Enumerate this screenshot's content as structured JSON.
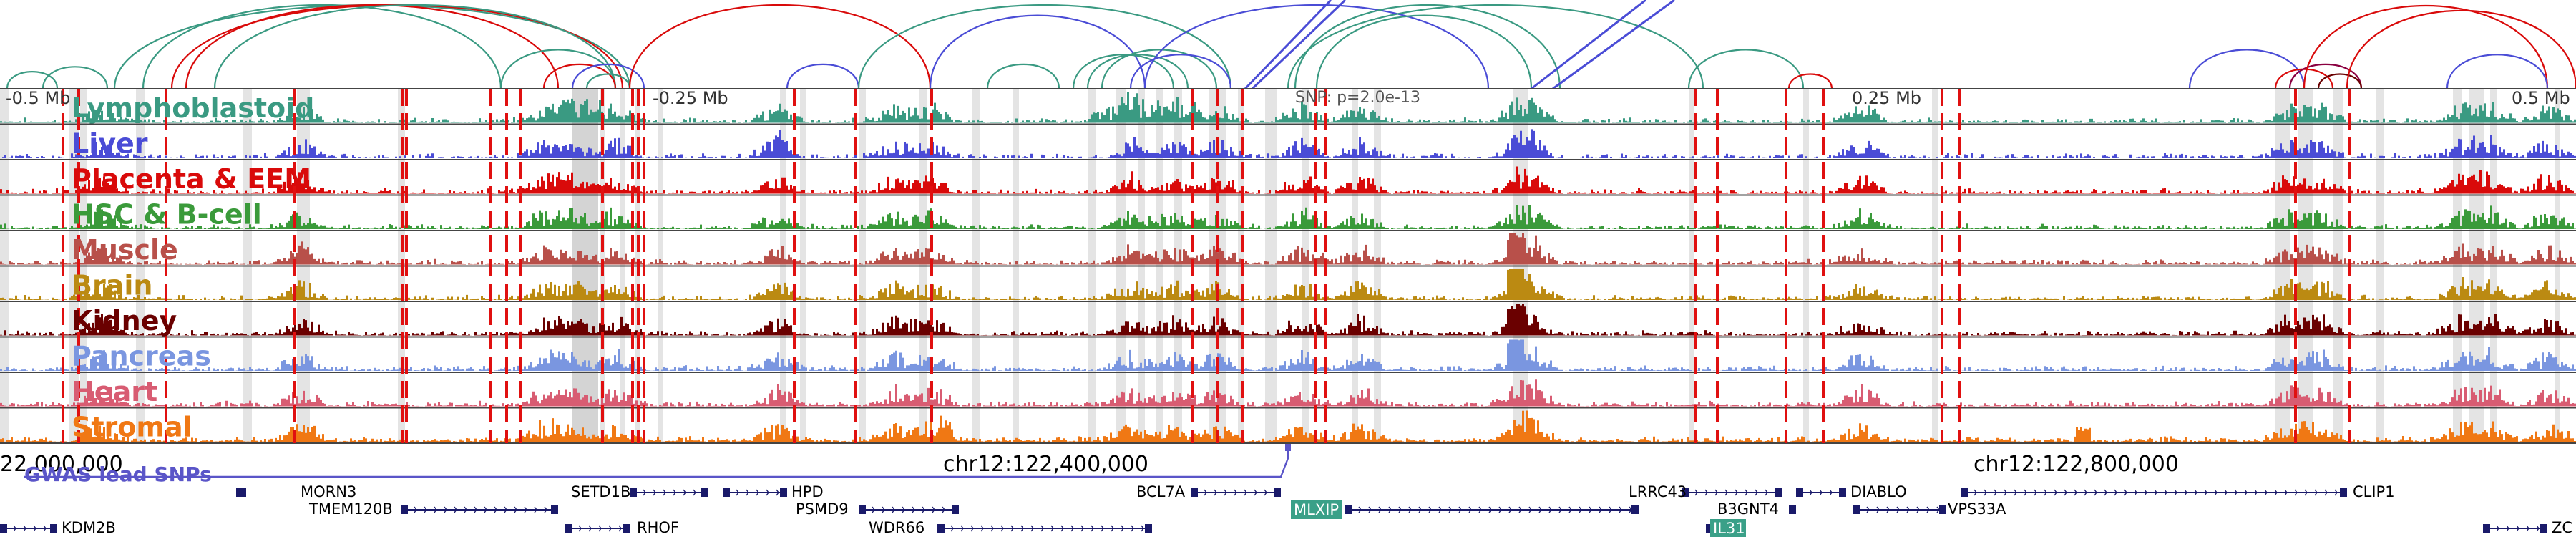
{
  "axis_ticks": [
    "-0.5 Mb",
    "-0.25 Mb",
    "0.25 Mb",
    "0.5 Mb"
  ],
  "snp_annotation": "SNP: p=2.0e-13",
  "coordinates": [
    "22,000,000",
    "chr12:122,400,000",
    "chr12:122,800,000"
  ],
  "gwas_label": "GWAS lead SNPs",
  "tracks": [
    {
      "label": "Lymphoblastoid",
      "color": "#3a9a82"
    },
    {
      "label": "Liver",
      "color": "#4a4cd6"
    },
    {
      "label": "Placenta & EEM",
      "color": "#d90a0a"
    },
    {
      "label": "HSC & B-cell",
      "color": "#3a9a3a"
    },
    {
      "label": "Muscle",
      "color": "#b8504a"
    },
    {
      "label": "Brain",
      "color": "#bb8a12"
    },
    {
      "label": "Kidney",
      "color": "#6a0000"
    },
    {
      "label": "Pancreas",
      "color": "#7a96e0"
    },
    {
      "label": "Heart",
      "color": "#d85c72"
    },
    {
      "label": "Stromal",
      "color": "#f07814"
    }
  ],
  "genes": [
    {
      "name": "MORN3"
    },
    {
      "name": "SETD1B"
    },
    {
      "name": "HPD"
    },
    {
      "name": "BCL7A"
    },
    {
      "name": "LRRC43"
    },
    {
      "name": "DIABLO"
    },
    {
      "name": "CLIP1"
    },
    {
      "name": "TMEM120B"
    },
    {
      "name": "PSMD9"
    },
    {
      "name": "MLXIP"
    },
    {
      "name": "B3GNT4"
    },
    {
      "name": "VPS33A"
    },
    {
      "name": "KDM2B"
    },
    {
      "name": "RHOF"
    },
    {
      "name": "WDR66"
    },
    {
      "name": "IL31"
    },
    {
      "name": "ZC"
    }
  ]
}
